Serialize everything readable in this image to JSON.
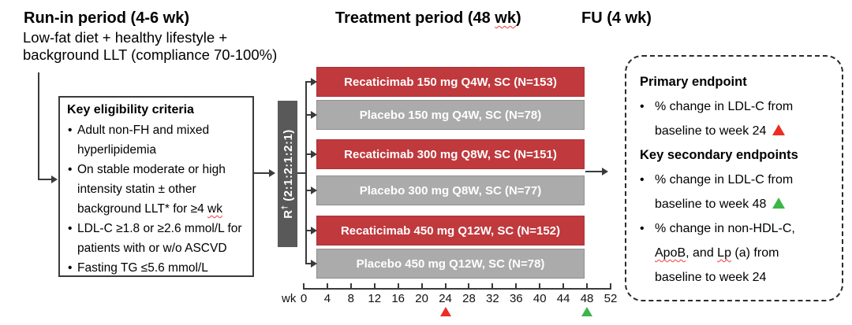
{
  "colors": {
    "arm_red": "#c0393d",
    "arm_gray": "#ababab",
    "rand_box": "#595959",
    "marker_red": "#ee2c24",
    "marker_green": "#3cb54a",
    "line": "#3a3a3a"
  },
  "headings": {
    "runin_title": "Run-in period (4-6 wk)",
    "runin_line1": "Low-fat diet + healthy lifestyle +",
    "runin_line2": "background LLT (compliance 70-100%)",
    "treatment_pre": "Treatment period (48 ",
    "treatment_wavy": "wk",
    "treatment_post": ")",
    "fu": "FU (4 wk)"
  },
  "eligibility": {
    "title": "Key eligibility criteria",
    "items": [
      {
        "text": "Adult non-FH and mixed hyperlipidemia",
        "wavy": ""
      },
      {
        "text": "On stable moderate or high intensity statin ± other background LLT* for ≥4 ",
        "wavy": "wk"
      },
      {
        "text": "LDL-C ≥1.8 or ≥2.6 mmol/L for patients with or w/o ASCVD",
        "wavy": ""
      },
      {
        "text": "Fasting TG ≤5.6 mmol/L",
        "wavy": ""
      }
    ]
  },
  "randomization": {
    "r": "R",
    "sup": "†",
    "ratio": "(2:1:2:1:2:1)"
  },
  "arms": [
    {
      "label": "Recaticimab 150 mg Q4W, SC (N=153)",
      "type": "active"
    },
    {
      "label": "Placebo 150 mg Q4W, SC (N=78)",
      "type": "placebo"
    },
    {
      "label": "Recaticimab 300 mg Q8W, SC (N=151)",
      "type": "active"
    },
    {
      "label": "Placebo 300 mg Q8W, SC (N=77)",
      "type": "placebo"
    },
    {
      "label": "Recaticimab 450 mg Q12W, SC (N=152)",
      "type": "active"
    },
    {
      "label": "Placebo 450 mg Q12W, SC (N=78)",
      "type": "placebo"
    }
  ],
  "timeline": {
    "unit_label": "wk",
    "ticks": [
      "0",
      "4",
      "8",
      "12",
      "16",
      "20",
      "24",
      "28",
      "32",
      "36",
      "40",
      "44",
      "48",
      "52"
    ],
    "primary_marker_week": 24,
    "secondary_marker_week": 48
  },
  "endpoints": {
    "primary_title": "Primary endpoint",
    "primary_item_line1": "% change in LDL-C from",
    "primary_item_line2": "baseline to week 24",
    "secondary_title": "Key secondary endpoints",
    "secondary_item1_line1": "% change in LDL-C from",
    "secondary_item1_line2": "baseline to week 48",
    "secondary_item2_line1": "% change in non-HDL-C,",
    "secondary_item2_line2_seg1": "ApoB",
    "secondary_item2_line2_seg2": ", and ",
    "secondary_item2_line2_seg3": "Lp",
    "secondary_item2_line2_seg4": " (a) from",
    "secondary_item2_line3": "baseline to week 24"
  }
}
